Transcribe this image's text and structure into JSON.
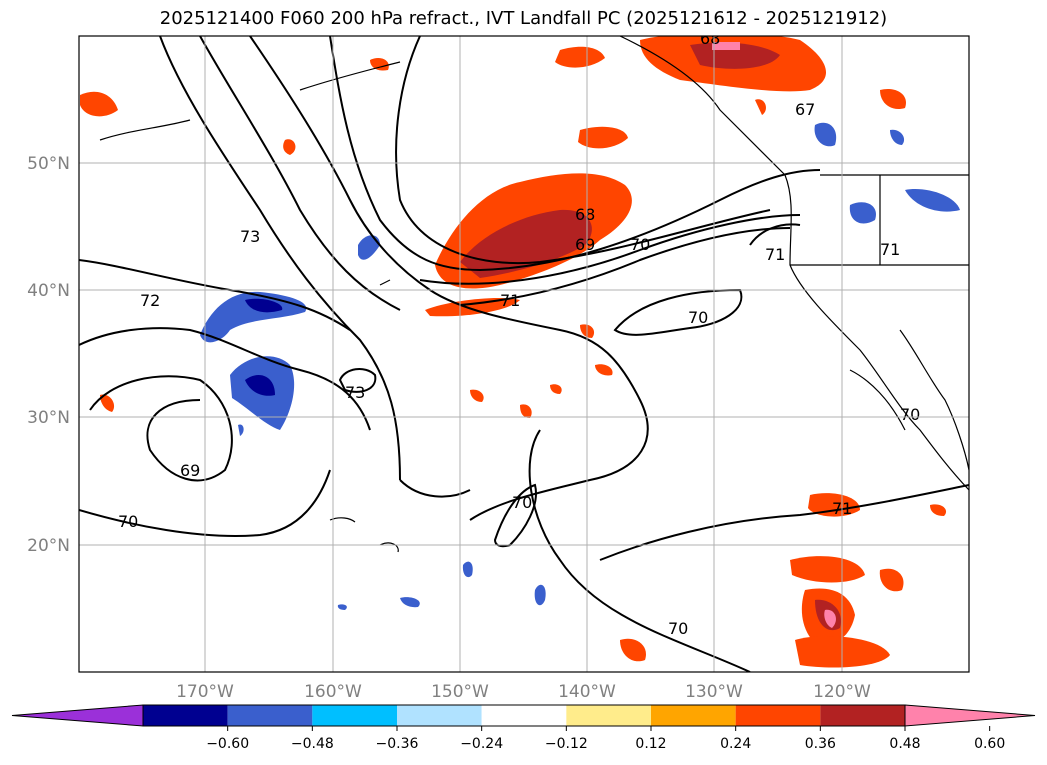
{
  "title": "2025121400 F060 200 hPa refract., IVT Landfall PC (2025121612 - 2025121912)",
  "lat_labels": [
    "50°N",
    "40°N",
    "30°N",
    "20°N"
  ],
  "lon_labels": [
    "170°W",
    "160°W",
    "150°W",
    "140°W",
    "130°W",
    "120°W"
  ],
  "contour_labels": [
    "73",
    "72",
    "73",
    "68",
    "69",
    "70",
    "71",
    "71",
    "70",
    "69",
    "70",
    "70",
    "70",
    "71",
    "70",
    "67",
    "71",
    "68"
  ],
  "colorbar": {
    "colors": [
      "#9b30d9",
      "#000090",
      "#3a5fcd",
      "#00bfff",
      "#b0e2ff",
      "#ffffff",
      "#ffec8b",
      "#ffa500",
      "#ff4500",
      "#b22222",
      "#ff82ab"
    ],
    "tick_labels": [
      "−0.60",
      "−0.48",
      "−0.36",
      "−0.24",
      "−0.12",
      "0.12",
      "0.24",
      "0.36",
      "0.48",
      "0.60"
    ]
  }
}
